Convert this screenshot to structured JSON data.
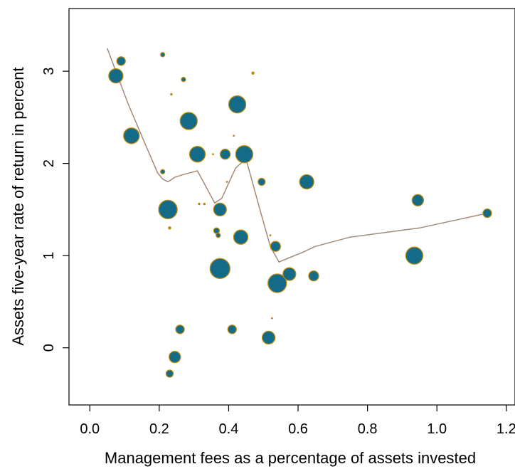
{
  "chart_data": {
    "type": "scatter",
    "title": "",
    "xlabel": "Management fees as a percentage of assets invested",
    "ylabel": "Assets five-year rate of return in percent",
    "xlim": [
      -0.06,
      1.225
    ],
    "ylim": [
      -0.62,
      3.68
    ],
    "x_ticks": [
      0.0,
      0.2,
      0.4,
      0.6,
      0.8,
      1.0,
      1.2
    ],
    "x_tick_labels": [
      "0.0",
      "0.2",
      "0.4",
      "0.6",
      "0.8",
      "1.0",
      "1.2"
    ],
    "y_ticks": [
      0,
      1,
      2,
      3
    ],
    "y_tick_labels": [
      "0",
      "1",
      "2",
      "3"
    ],
    "grid": false,
    "legend": "none",
    "colors": {
      "point_fill": "#136b87",
      "point_stroke": "#b8860b",
      "trend": "#a48a78",
      "axis": "#000000"
    },
    "points": [
      {
        "x": 0.075,
        "y": 2.95,
        "size": 10
      },
      {
        "x": 0.09,
        "y": 3.11,
        "size": 6
      },
      {
        "x": 0.12,
        "y": 2.3,
        "size": 11
      },
      {
        "x": 0.21,
        "y": 3.18,
        "size": 3
      },
      {
        "x": 0.21,
        "y": 1.91,
        "size": 3
      },
      {
        "x": 0.225,
        "y": 1.5,
        "size": 13
      },
      {
        "x": 0.23,
        "y": -0.28,
        "size": 5
      },
      {
        "x": 0.23,
        "y": 1.3,
        "size": 2
      },
      {
        "x": 0.235,
        "y": 2.75,
        "size": 1.5
      },
      {
        "x": 0.245,
        "y": -0.1,
        "size": 8
      },
      {
        "x": 0.26,
        "y": 0.2,
        "size": 6
      },
      {
        "x": 0.27,
        "y": 2.91,
        "size": 3
      },
      {
        "x": 0.285,
        "y": 2.46,
        "size": 12
      },
      {
        "x": 0.31,
        "y": 2.1,
        "size": 11
      },
      {
        "x": 0.315,
        "y": 1.56,
        "size": 1.5
      },
      {
        "x": 0.33,
        "y": 1.56,
        "size": 1.5
      },
      {
        "x": 0.355,
        "y": 2.1,
        "size": 0.8
      },
      {
        "x": 0.365,
        "y": 1.27,
        "size": 4
      },
      {
        "x": 0.37,
        "y": 1.22,
        "size": 3
      },
      {
        "x": 0.375,
        "y": 1.5,
        "size": 9
      },
      {
        "x": 0.375,
        "y": 0.86,
        "size": 14
      },
      {
        "x": 0.39,
        "y": 2.1,
        "size": 7
      },
      {
        "x": 0.395,
        "y": 1.8,
        "size": 0.8
      },
      {
        "x": 0.41,
        "y": 0.2,
        "size": 6
      },
      {
        "x": 0.415,
        "y": 2.3,
        "size": 0.8
      },
      {
        "x": 0.425,
        "y": 2.64,
        "size": 12
      },
      {
        "x": 0.435,
        "y": 1.2,
        "size": 10
      },
      {
        "x": 0.445,
        "y": 2.1,
        "size": 12
      },
      {
        "x": 0.47,
        "y": 2.98,
        "size": 2
      },
      {
        "x": 0.495,
        "y": 1.8,
        "size": 5
      },
      {
        "x": 0.515,
        "y": 0.11,
        "size": 9
      },
      {
        "x": 0.52,
        "y": 1.22,
        "size": 1
      },
      {
        "x": 0.525,
        "y": 0.32,
        "size": 0.8
      },
      {
        "x": 0.535,
        "y": 1.1,
        "size": 7
      },
      {
        "x": 0.54,
        "y": 0.7,
        "size": 13
      },
      {
        "x": 0.575,
        "y": 0.8,
        "size": 9
      },
      {
        "x": 0.625,
        "y": 1.8,
        "size": 10
      },
      {
        "x": 0.645,
        "y": 0.78,
        "size": 7
      },
      {
        "x": 0.935,
        "y": 1.0,
        "size": 12
      },
      {
        "x": 0.945,
        "y": 1.6,
        "size": 8
      },
      {
        "x": 1.145,
        "y": 1.46,
        "size": 6
      }
    ],
    "trend_line": [
      {
        "x": 0.05,
        "y": 3.25
      },
      {
        "x": 0.11,
        "y": 2.65
      },
      {
        "x": 0.155,
        "y": 2.25
      },
      {
        "x": 0.195,
        "y": 1.9
      },
      {
        "x": 0.21,
        "y": 1.83
      },
      {
        "x": 0.225,
        "y": 1.8
      },
      {
        "x": 0.245,
        "y": 1.85
      },
      {
        "x": 0.27,
        "y": 1.88
      },
      {
        "x": 0.31,
        "y": 1.92
      },
      {
        "x": 0.33,
        "y": 1.78
      },
      {
        "x": 0.36,
        "y": 1.57
      },
      {
        "x": 0.38,
        "y": 1.62
      },
      {
        "x": 0.42,
        "y": 1.95
      },
      {
        "x": 0.45,
        "y": 2.05
      },
      {
        "x": 0.49,
        "y": 1.5
      },
      {
        "x": 0.52,
        "y": 1.1
      },
      {
        "x": 0.545,
        "y": 0.93
      },
      {
        "x": 0.57,
        "y": 0.97
      },
      {
        "x": 0.61,
        "y": 1.03
      },
      {
        "x": 0.65,
        "y": 1.1
      },
      {
        "x": 0.75,
        "y": 1.2
      },
      {
        "x": 0.85,
        "y": 1.25
      },
      {
        "x": 0.95,
        "y": 1.3
      },
      {
        "x": 1.145,
        "y": 1.46
      }
    ]
  }
}
